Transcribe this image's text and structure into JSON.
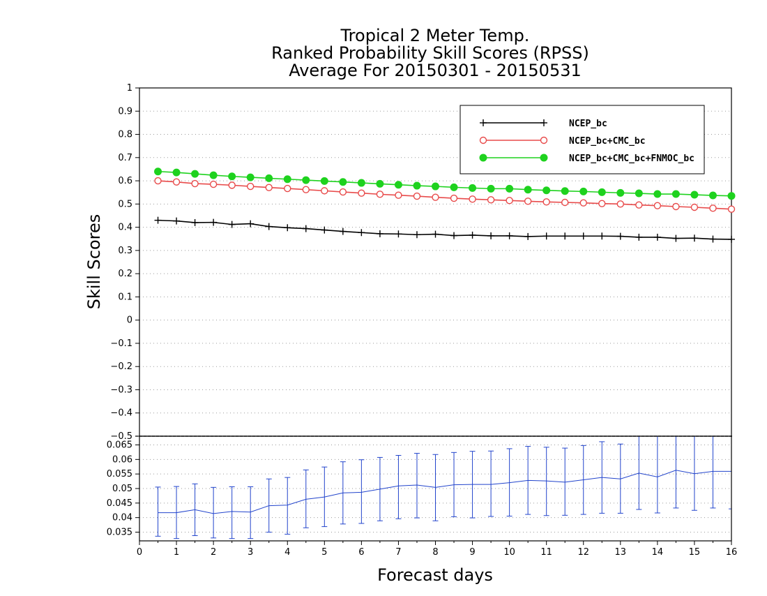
{
  "title_lines": [
    "Tropical 2 Meter Temp.",
    "Ranked Probability Skill Scores (RPSS)",
    "Average For 20150301 - 20150531"
  ],
  "chart_data": [
    {
      "type": "line",
      "xlabel": "Forecast days",
      "ylabel": "Skill Scores",
      "xlim": [
        0,
        16
      ],
      "ylim": [
        -0.5,
        1
      ],
      "x_ticks": [
        0,
        1,
        2,
        3,
        4,
        5,
        6,
        7,
        8,
        9,
        10,
        11,
        12,
        13,
        14,
        15,
        16
      ],
      "y_ticks": [
        -0.5,
        -0.4,
        -0.3,
        -0.2,
        -0.1,
        0,
        0.1,
        0.2,
        0.3,
        0.4,
        0.5,
        0.6,
        0.7,
        0.8,
        0.9,
        1
      ],
      "grid": true,
      "legend_position": "top-right",
      "x": [
        0.5,
        1,
        1.5,
        2,
        2.5,
        3,
        3.5,
        4,
        4.5,
        5,
        5.5,
        6,
        6.5,
        7,
        7.5,
        8,
        8.5,
        9,
        9.5,
        10,
        10.5,
        11,
        11.5,
        12,
        12.5,
        13,
        13.5,
        14,
        14.5,
        15,
        15.5,
        16
      ],
      "series": [
        {
          "name": "NCEP_bc",
          "color": "#000000",
          "marker": "plus",
          "values": [
            0.43,
            0.427,
            0.42,
            0.421,
            0.412,
            0.415,
            0.403,
            0.398,
            0.394,
            0.388,
            0.382,
            0.377,
            0.372,
            0.371,
            0.368,
            0.37,
            0.364,
            0.366,
            0.363,
            0.363,
            0.36,
            0.362,
            0.362,
            0.362,
            0.362,
            0.361,
            0.357,
            0.357,
            0.352,
            0.353,
            0.349,
            0.348
          ]
        },
        {
          "name": "NCEP_bc+CMC_bc",
          "color": "#e84a4a",
          "marker": "open-circle",
          "values": [
            0.6,
            0.595,
            0.588,
            0.585,
            0.581,
            0.576,
            0.571,
            0.567,
            0.562,
            0.557,
            0.552,
            0.547,
            0.542,
            0.538,
            0.534,
            0.529,
            0.525,
            0.521,
            0.518,
            0.515,
            0.512,
            0.509,
            0.507,
            0.505,
            0.502,
            0.5,
            0.496,
            0.493,
            0.489,
            0.486,
            0.482,
            0.478
          ]
        },
        {
          "name": "NCEP_bc+CMC_bc+FNMOC_bc",
          "color": "#1ed21e",
          "marker": "filled-circle",
          "values": [
            0.64,
            0.636,
            0.63,
            0.624,
            0.619,
            0.615,
            0.611,
            0.607,
            0.603,
            0.599,
            0.595,
            0.591,
            0.587,
            0.583,
            0.579,
            0.576,
            0.572,
            0.569,
            0.566,
            0.566,
            0.562,
            0.559,
            0.556,
            0.554,
            0.551,
            0.548,
            0.546,
            0.543,
            0.543,
            0.54,
            0.537,
            0.535
          ]
        }
      ]
    },
    {
      "type": "line",
      "xlim": [
        0,
        16
      ],
      "ylim": [
        0.032,
        0.068
      ],
      "x_ticks": [
        0,
        1,
        2,
        3,
        4,
        5,
        6,
        7,
        8,
        9,
        10,
        11,
        12,
        13,
        14,
        15,
        16
      ],
      "y_ticks": [
        0.035,
        0.04,
        0.045,
        0.05,
        0.055,
        0.06,
        0.065
      ],
      "grid": true,
      "color": "#2244cc",
      "x": [
        0.5,
        1,
        1.5,
        2,
        2.5,
        3,
        3.5,
        4,
        4.5,
        5,
        5.5,
        6,
        6.5,
        7,
        7.5,
        8,
        8.5,
        9,
        9.5,
        10,
        10.5,
        11,
        11.5,
        12,
        12.5,
        13,
        13.5,
        14,
        14.5,
        15,
        15.5,
        16
      ],
      "values": [
        0.0417,
        0.0417,
        0.0427,
        0.0414,
        0.0421,
        0.0419,
        0.0441,
        0.0443,
        0.0463,
        0.0471,
        0.0485,
        0.0487,
        0.0498,
        0.0509,
        0.0512,
        0.0504,
        0.0513,
        0.0514,
        0.0514,
        0.052,
        0.0528,
        0.0526,
        0.0522,
        0.053,
        0.0538,
        0.0533,
        0.0553,
        0.054,
        0.0563,
        0.0551,
        0.0559,
        0.0559
      ],
      "error_low": [
        0.0336,
        0.0328,
        0.0338,
        0.033,
        0.0328,
        0.0328,
        0.035,
        0.0343,
        0.0365,
        0.0369,
        0.0378,
        0.038,
        0.0389,
        0.0396,
        0.0399,
        0.0389,
        0.0403,
        0.0399,
        0.0404,
        0.0405,
        0.0411,
        0.0407,
        0.0408,
        0.0411,
        0.0415,
        0.0415,
        0.0428,
        0.0416,
        0.0433,
        0.0425,
        0.0433,
        0.043
      ],
      "error_high": [
        0.0505,
        0.0507,
        0.0516,
        0.0504,
        0.0506,
        0.0506,
        0.0533,
        0.0538,
        0.0564,
        0.0574,
        0.0592,
        0.0599,
        0.0607,
        0.0614,
        0.0621,
        0.0617,
        0.0624,
        0.0628,
        0.0629,
        0.0637,
        0.0645,
        0.0642,
        0.0639,
        0.0648,
        0.0661,
        0.0653,
        0.0682,
        0.0681,
        0.0691,
        0.068,
        0.069,
        0.069
      ]
    }
  ]
}
